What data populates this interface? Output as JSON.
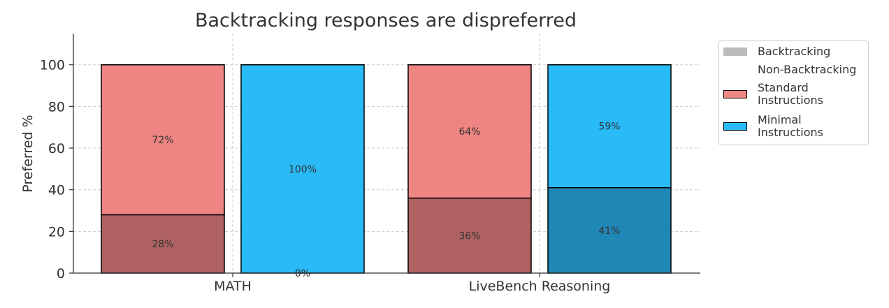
{
  "chart_data": {
    "type": "bar",
    "title": "Backtracking responses are dispreferred",
    "xlabel": "",
    "ylabel": "Preferred %",
    "ylim": [
      0,
      115
    ],
    "yticks": [
      0,
      20,
      40,
      60,
      80,
      100
    ],
    "grid": true,
    "legend_position": "outside-right",
    "categories": [
      "MATH",
      "LiveBench Reasoning"
    ],
    "series": [
      {
        "name": "Standard Instructions",
        "color": "#ee8582",
        "backtracking_color": "#b06262",
        "backtracking": [
          28,
          36
        ],
        "non_backtracking": [
          72,
          64
        ],
        "backtracking_labels": [
          "28%",
          "36%"
        ],
        "non_backtracking_labels": [
          "72%",
          "64%"
        ]
      },
      {
        "name": "Minimal Instructions",
        "color": "#29bbf7",
        "backtracking_color": "#1f87b6",
        "backtracking": [
          0,
          41
        ],
        "non_backtracking": [
          100,
          59
        ],
        "backtracking_labels": [
          "0%",
          "41%"
        ],
        "non_backtracking_labels": [
          "100%",
          "59%"
        ]
      }
    ],
    "legend": [
      {
        "label": "Backtracking",
        "swatch": "gray",
        "color": "#bbbbbb"
      },
      {
        "label": "Non-Backtracking",
        "swatch": "none",
        "color": ""
      },
      {
        "label": "Standard\nInstructions",
        "swatch": "box",
        "color": "#ee8582"
      },
      {
        "label": "Minimal\nInstructions",
        "swatch": "box",
        "color": "#29bbf7"
      }
    ]
  }
}
